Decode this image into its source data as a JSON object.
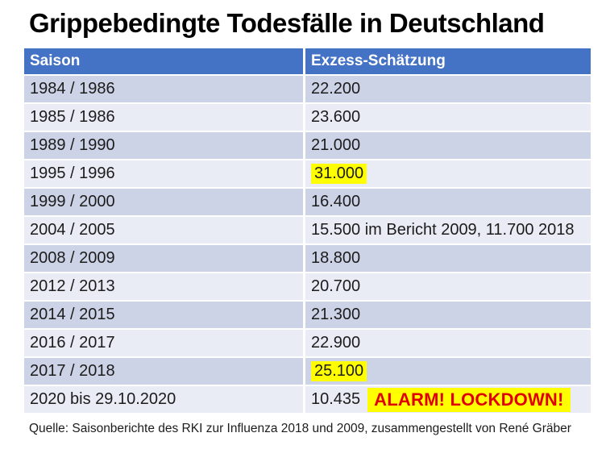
{
  "title": "Grippebedingte Todesfälle in Deutschland",
  "table": {
    "headers": [
      "Saison",
      "Exzess-Schätzung"
    ],
    "rows": [
      {
        "saison": "1984 / 1986",
        "value": "22.200",
        "highlight": false
      },
      {
        "saison": "1985 / 1986",
        "value": "23.600",
        "highlight": false
      },
      {
        "saison": "1989 / 1990",
        "value": "21.000",
        "highlight": false
      },
      {
        "saison": "1995 / 1996",
        "value": "31.000",
        "highlight": true
      },
      {
        "saison": "1999 / 2000",
        "value": "16.400",
        "highlight": false
      },
      {
        "saison": "2004 / 2005",
        "value": "15.500 im Bericht 2009, 11.700 2018",
        "highlight": false
      },
      {
        "saison": "2008 / 2009",
        "value": "18.800",
        "highlight": false
      },
      {
        "saison": "2012 / 2013",
        "value": "20.700",
        "highlight": false
      },
      {
        "saison": "2014 / 2015",
        "value": "21.300",
        "highlight": false
      },
      {
        "saison": "2016 / 2017",
        "value": "22.900",
        "highlight": false
      },
      {
        "saison": "2017 / 2018",
        "value": "25.100",
        "highlight": true
      },
      {
        "saison": "2020 bis 29.10.2020",
        "value": "10.435",
        "highlight": false,
        "annotation": "ALARM! LOCKDOWN!"
      }
    ]
  },
  "footer": "Quelle: Saisonberichte des RKI zur Influenza 2018 und 2009, zusammengestellt von René Gräber",
  "colors": {
    "header_bg": "#4472c4",
    "row_dark": "#cdd3e6",
    "row_light": "#e9ebf5",
    "highlight_yellow": "#ffff00",
    "alarm_red": "#e00000",
    "header_text": "#ffffff",
    "body_text": "#1c1c1c"
  }
}
